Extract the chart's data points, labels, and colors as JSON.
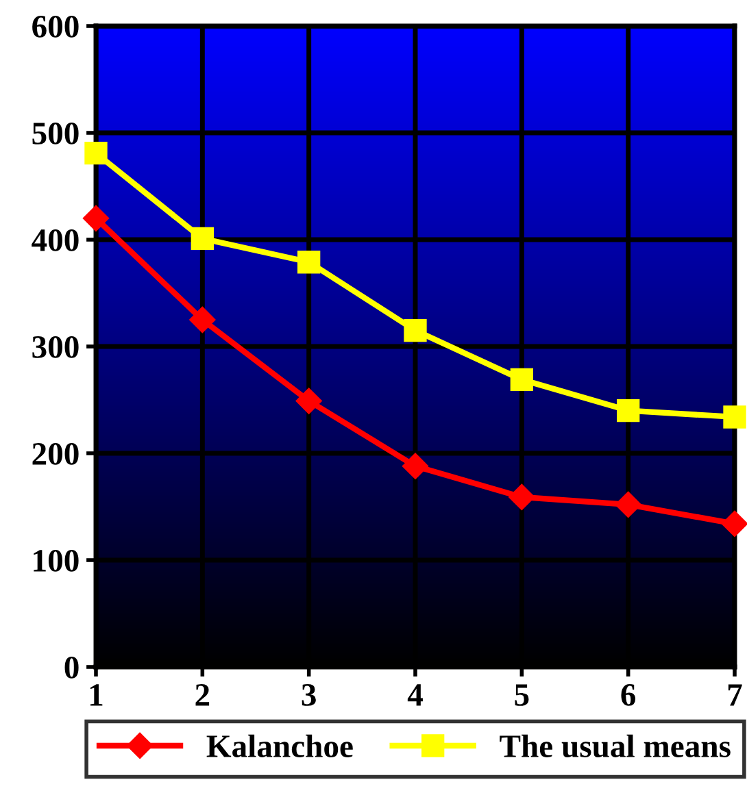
{
  "chart_data": {
    "type": "line",
    "categories": [
      "1",
      "2",
      "3",
      "4",
      "5",
      "6",
      "7"
    ],
    "series": [
      {
        "name": "Kalanchoe",
        "color": "#ff0000",
        "marker": "diamond",
        "values": [
          420,
          325,
          249,
          188,
          159,
          152,
          134
        ]
      },
      {
        "name": "The usual means",
        "color": "#ffff00",
        "marker": "square",
        "values": [
          481,
          401,
          379,
          315,
          269,
          240,
          234
        ]
      }
    ],
    "ylim": [
      0,
      600
    ],
    "yticks": [
      0,
      100,
      200,
      300,
      400,
      500,
      600
    ],
    "grid": true,
    "legend": "bottom",
    "line_style": "solid"
  }
}
